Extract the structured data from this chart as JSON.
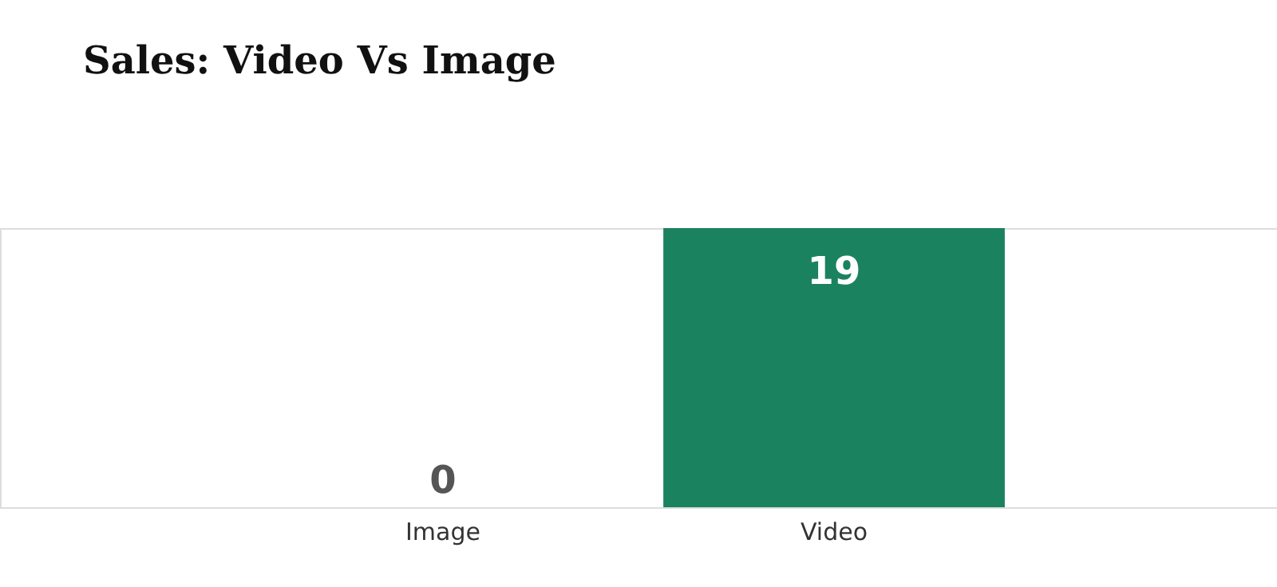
{
  "chart_data": {
    "type": "bar",
    "title": "Sales: Video Vs Image",
    "categories": [
      "Image",
      "Video"
    ],
    "values": [
      0,
      19
    ],
    "colors": [
      "#ef95b4",
      "#1b8260"
    ],
    "data_labels": true
  }
}
